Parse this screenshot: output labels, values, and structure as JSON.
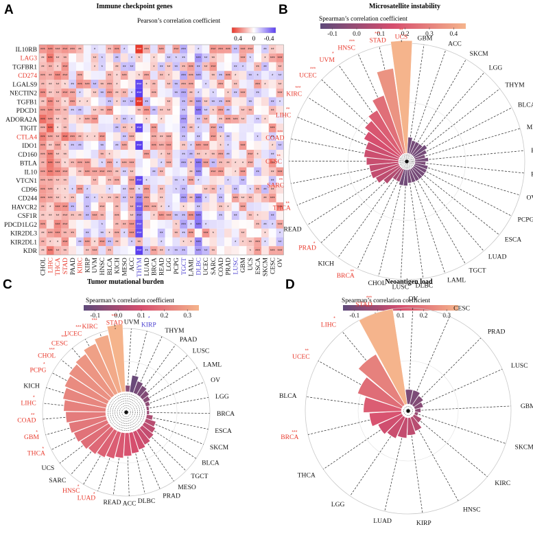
{
  "panels": {
    "A": {
      "letter": "A",
      "title": "Immune checkpoint genes",
      "legend_title": "Pearson’s correlation coefficient",
      "legend_ticks": [
        "0.4",
        "0",
        "-0.4"
      ]
    },
    "B": {
      "letter": "B",
      "title": "Microsatellite instability",
      "legend_title": "Spearman’s correlation coefficient",
      "legend_ticks": [
        "-0.1",
        "0.0",
        "0.1",
        "0.2",
        "0.3",
        "0.4"
      ]
    },
    "C": {
      "letter": "C",
      "title": "Tumor mutational burden",
      "legend_title": "Spearman’s correlation coefficient",
      "legend_ticks": [
        "-0.1",
        "0.0",
        "0.1",
        "0.2",
        "0.3"
      ]
    },
    "D": {
      "letter": "D",
      "title": "Neoantigen load",
      "legend_title": "Spearman’s correlation coefficient",
      "legend_ticks": [
        "-0.1",
        "0.0",
        "0.1",
        "0.2",
        "0.3"
      ]
    }
  },
  "colors": {
    "positive": "#e8392c",
    "negative": "#5b3ff0",
    "red_label": "#e8392c",
    "blue_label": "#4a3fd0",
    "radial_low": "#5e4a7a",
    "radial_mid": "#d64e6e",
    "radial_high": "#f5b48c"
  },
  "chart_data": [
    {
      "id": "A",
      "type": "heatmap",
      "title": "Immune checkpoint genes",
      "rows": [
        "IL10RB",
        "LAG3",
        "TGFBR1",
        "CD274",
        "LGALS9",
        "NECTIN2",
        "TGFB1",
        "PDCD1",
        "ADORA2A",
        "TIGIT",
        "CTLA4",
        "IDO1",
        "CD160",
        "BTLA",
        "IL10",
        "VTCN1",
        "CD96",
        "CD244",
        "HAVCR2",
        "CSF1R",
        "PDCD1LG2",
        "KIR2DL3",
        "KIR2DL1",
        "KDR"
      ],
      "red_rows": [
        "LAG3",
        "CD274",
        "CTLA4"
      ],
      "columns": [
        "CHOL",
        "LIHC",
        "THCA",
        "STAD",
        "PAAD",
        "KIRC",
        "KIRP",
        "UVM",
        "HNSC",
        "BLCA",
        "KICH",
        "MESO",
        "ACC",
        "THYM",
        "LUAD",
        "BRCA",
        "READ",
        "LGG",
        "PCPG",
        "TGCT",
        "LAML",
        "DLBC",
        "UCEC",
        "SARC",
        "COAD",
        "PRAD",
        "LUSC",
        "GBM",
        "UCS",
        "ESCA",
        "SKCM",
        "CESC",
        "OV"
      ],
      "red_columns": [
        "LIHC",
        "THCA",
        "STAD",
        "KIRC"
      ],
      "blue_columns": [
        "THYM",
        "DLBC",
        "TGCT",
        "LUSC"
      ],
      "color_range": [
        -0.4,
        0.4
      ]
    },
    {
      "id": "B",
      "type": "bar",
      "layout": "radial",
      "title": "Microsatellite instability",
      "categories": [
        "UCS",
        "GBM",
        "ACC",
        "SKCM",
        "LGG",
        "THYM",
        "BLCA",
        "MESO",
        "KIRP",
        "PAAD",
        "OV",
        "PCPG",
        "ESCA",
        "LUAD",
        "TGCT",
        "LAML",
        "DLBC",
        "LUSC",
        "CHOL",
        "BRCA",
        "KICH",
        "PRAD",
        "READ",
        "THCA",
        "SARC",
        "CESC",
        "COAD",
        "LIHC",
        "KIRC",
        "UCEC",
        "UVM",
        "HNSC",
        "STAD"
      ],
      "values": [
        0.42,
        -0.06,
        -0.05,
        -0.05,
        -0.05,
        -0.06,
        -0.05,
        -0.04,
        -0.05,
        -0.04,
        -0.05,
        -0.05,
        -0.05,
        -0.05,
        -0.05,
        -0.05,
        -0.05,
        -0.06,
        -0.06,
        0.05,
        0.05,
        0.08,
        0.1,
        0.11,
        0.11,
        0.12,
        0.13,
        0.13,
        0.15,
        0.17,
        0.19,
        0.23,
        0.32
      ],
      "stars": [
        "**",
        "",
        "",
        "",
        "",
        "",
        "",
        "",
        "",
        "",
        "",
        "",
        "",
        "",
        "",
        "",
        "",
        "",
        "",
        "**",
        "",
        "*",
        "",
        "**",
        "**",
        "**",
        "***",
        "**",
        "***",
        "***",
        "*",
        "***",
        "***"
      ],
      "red_labels": [
        "UCS",
        "BRCA",
        "PRAD",
        "THCA",
        "SARC",
        "CESC",
        "COAD",
        "LIHC",
        "KIRC",
        "UCEC",
        "UVM",
        "HNSC",
        "STAD"
      ],
      "blue_labels": [],
      "color_range": [
        -0.1,
        0.4
      ]
    },
    {
      "id": "C",
      "type": "bar",
      "layout": "radial",
      "title": "Tumor mutational burden",
      "categories": [
        "UVM",
        "KIRP",
        "THYM",
        "PAAD",
        "LUSC",
        "LAML",
        "OV",
        "LGG",
        "BRCA",
        "ESCA",
        "SKCM",
        "BLCA",
        "TGCT",
        "MESO",
        "PRAD",
        "DLBC",
        "ACC",
        "READ",
        "LUAD",
        "HNSC",
        "SARC",
        "UCS",
        "THCA",
        "GBM",
        "COAD",
        "LIHC",
        "KICH",
        "PCPG",
        "CHOL",
        "CESC",
        "UCEC",
        "KIRC",
        "STAD"
      ],
      "values": [
        -0.03,
        -0.08,
        -0.06,
        -0.05,
        -0.04,
        -0.03,
        -0.02,
        -0.01,
        0.0,
        0.03,
        0.05,
        0.06,
        0.07,
        0.08,
        0.09,
        0.1,
        0.11,
        0.12,
        0.13,
        0.14,
        0.15,
        0.16,
        0.17,
        0.18,
        0.19,
        0.2,
        0.21,
        0.22,
        0.23,
        0.24,
        0.26,
        0.28,
        0.32
      ],
      "stars": [
        "",
        "*",
        "",
        "",
        "",
        "",
        "",
        "",
        "",
        "",
        "",
        "",
        "",
        "",
        "",
        "",
        "",
        "",
        "*",
        "*",
        "",
        "",
        "*",
        "*",
        "**",
        "*",
        "",
        "*",
        "***",
        "***",
        "***",
        "***",
        "***"
      ],
      "red_labels": [
        "LUAD",
        "HNSC",
        "THCA",
        "GBM",
        "COAD",
        "LIHC",
        "PCPG",
        "CHOL",
        "CESC",
        "UCEC",
        "KIRC",
        "STAD"
      ],
      "blue_labels": [
        "KIRP"
      ],
      "color_range": [
        -0.1,
        0.3
      ]
    },
    {
      "id": "D",
      "type": "bar",
      "layout": "radial",
      "title": "Neoantigen load",
      "categories": [
        "OV",
        "CESC",
        "PRAD",
        "LUSC",
        "GBM",
        "SKCM",
        "KIRC",
        "HNSC",
        "KIRP",
        "LUAD",
        "LGG",
        "THCA",
        "BRCA",
        "BLCA",
        "UCEC",
        "LIHC",
        "STAD"
      ],
      "values": [
        -0.05,
        -0.05,
        -0.04,
        -0.03,
        -0.02,
        0.0,
        0.03,
        0.05,
        0.06,
        0.07,
        0.08,
        0.09,
        0.11,
        0.13,
        0.16,
        0.2,
        0.33
      ],
      "stars": [
        "",
        "",
        "",
        "",
        "",
        "",
        "",
        "",
        "",
        "",
        "",
        "",
        "***",
        "",
        "**",
        "*",
        "***"
      ],
      "red_labels": [
        "BRCA",
        "UCEC",
        "LIHC",
        "STAD"
      ],
      "blue_labels": [],
      "color_range": [
        -0.1,
        0.3
      ]
    }
  ]
}
